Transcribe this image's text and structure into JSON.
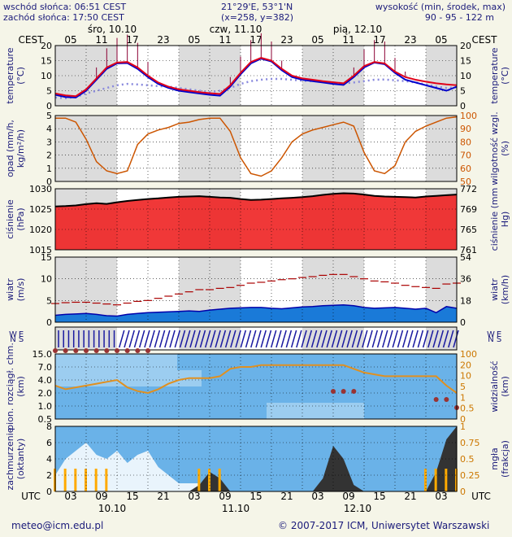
{
  "header": {
    "sunrise": "wschód słońca: 06:51 CEST",
    "sunset": "zachód słońca: 17:50 CEST",
    "coords": "21°29'E, 53°1'N",
    "grid": "(x=258, y=382)",
    "height_label": "wysokość (min, środek, max)",
    "height_values": "90 - 95 - 122 m"
  },
  "footer": {
    "email": "meteo@icm.edu.pl",
    "copyright": "© 2007-2017 ICM, Uniwersytet Warszawski"
  },
  "axes": {
    "cest_label": "CEST",
    "utc_label": "UTC",
    "cest_hours": [
      "05",
      "11",
      "17",
      "23",
      "05",
      "11",
      "17",
      "23",
      "05",
      "11",
      "17",
      "23",
      "05"
    ],
    "utc_hours": [
      "03",
      "09",
      "15",
      "21",
      "03",
      "09",
      "15",
      "21",
      "03",
      "09",
      "15",
      "21",
      "03"
    ],
    "top_days": [
      "śro, 10.10",
      "czw, 11.10",
      "pią, 12.10"
    ],
    "bottom_days": [
      "10.10",
      "11.10",
      "12.10"
    ]
  },
  "colors": {
    "temp_red": "#e0001a",
    "temp_blue": "#0000cc",
    "humidity": "#cc5500",
    "pressure_fill": "#ee2222",
    "wind_blue": "#1a7ad8",
    "cloud_bg": "#6ab2e8",
    "fog": "#333333",
    "rain_bar": "#ffaa00"
  },
  "chart_data": [
    {
      "type": "line",
      "name": "temperature",
      "ylabel": "temperature (°C)",
      "left_ticks": [
        "0",
        "5",
        "10",
        "15",
        "20"
      ],
      "right_ticks": [
        "0",
        "5",
        "10",
        "15",
        "20"
      ],
      "ylim": [
        0,
        22
      ],
      "series": [
        {
          "values": [
            4.5,
            3.8,
            3.5,
            6,
            10,
            14,
            15.8,
            16,
            14,
            11,
            8.5,
            7,
            6,
            5.5,
            5,
            4.6,
            4.3,
            7.5,
            12,
            16,
            17.5,
            16.5,
            13.5,
            11,
            10,
            9.5,
            9,
            8.6,
            8.2,
            11,
            14.5,
            16,
            15.5,
            12.5,
            10.5,
            9.5,
            8.8,
            8.2,
            7.8,
            7.5
          ]
        },
        {
          "values": [
            4,
            3.2,
            3,
            5.5,
            9.5,
            13.5,
            15.5,
            15.6,
            13.5,
            10.5,
            8,
            6.5,
            5.5,
            5,
            4.5,
            4,
            3.7,
            7,
            11.5,
            15.5,
            17.2,
            16.2,
            13,
            10.5,
            9.5,
            9,
            8.5,
            8,
            7.6,
            10.5,
            14,
            15.8,
            15.2,
            12,
            9.5,
            8.5,
            7.5,
            6.5,
            5.5,
            7
          ]
        },
        {
          "values": [
            3,
            2.8,
            3.2,
            4.5,
            5.5,
            6.5,
            7.5,
            8,
            7.8,
            7.5,
            7.2,
            7,
            6.5,
            6,
            5.5,
            5,
            5.5,
            6.5,
            8,
            9,
            9.5,
            9.8,
            9.8,
            9.5,
            9.2,
            9,
            8.8,
            8.5,
            8.2,
            8.5,
            9,
            9.5,
            9.6,
            9.3,
            9,
            8.5,
            7.8,
            7,
            6.5,
            6.8
          ]
        }
      ],
      "bars": [
        0,
        0,
        0,
        0,
        4,
        7,
        9,
        10,
        9,
        5,
        0,
        0,
        0,
        0,
        0,
        0,
        0,
        3,
        6,
        8,
        9,
        7,
        3,
        0,
        0,
        0,
        0,
        0,
        0,
        3,
        6,
        8,
        8,
        5,
        2,
        0,
        0,
        0,
        0,
        0
      ]
    },
    {
      "type": "line",
      "name": "precipitation-humidity",
      "ylabel": "opad (mm/h, kg/m²/h)",
      "ylabel_right": "wilgotność wzgl. (%)",
      "left_ticks": [
        "0",
        "1",
        "2",
        "3",
        "4",
        "5"
      ],
      "right_ticks": [
        "50",
        "60",
        "70",
        "80",
        "90",
        "100"
      ],
      "ylim": [
        0,
        5
      ],
      "ylim_right": [
        50,
        100
      ],
      "series": [
        {
          "values": [
            98,
            98,
            95,
            82,
            65,
            58,
            56,
            58,
            78,
            86,
            89,
            91,
            94,
            95,
            97,
            98,
            98,
            88,
            68,
            56,
            54,
            58,
            68,
            80,
            86,
            89,
            91,
            93,
            95,
            92,
            72,
            58,
            56,
            62,
            80,
            88,
            92,
            95,
            98,
            99
          ]
        }
      ]
    },
    {
      "type": "area",
      "name": "pressure",
      "ylabel": "ciśnienie (hPa)",
      "ylabel_right": "ciśnienie (mm Hg)",
      "left_ticks": [
        "1015",
        "1020",
        "1025",
        "1030"
      ],
      "right_ticks": [
        "761",
        "765",
        "769",
        "772"
      ],
      "ylim": [
        1013,
        1032
      ],
      "series": [
        {
          "values": [
            1026.5,
            1026.6,
            1026.8,
            1027.2,
            1027.5,
            1027.3,
            1027.8,
            1028.2,
            1028.5,
            1028.8,
            1029,
            1029.3,
            1029.5,
            1029.6,
            1029.7,
            1029.5,
            1029.3,
            1029.2,
            1028.8,
            1028.5,
            1028.6,
            1028.8,
            1029,
            1029.2,
            1029.4,
            1029.7,
            1030.1,
            1030.4,
            1030.6,
            1030.5,
            1030.2,
            1029.8,
            1029.6,
            1029.5,
            1029.4,
            1029.3,
            1029.6,
            1029.8,
            1030,
            1030.2
          ]
        }
      ]
    },
    {
      "type": "line",
      "name": "wind",
      "ylabel": "wiatr (m/s)",
      "ylabel_right": "wiatr (km/h)",
      "left_ticks": [
        "0",
        "5",
        "10",
        "15"
      ],
      "right_ticks": [
        "0",
        "18",
        "36",
        "54"
      ],
      "ylim": [
        0,
        15
      ],
      "series": [
        {
          "values": [
            1.6,
            1.8,
            1.9,
            2,
            1.8,
            1.5,
            1.4,
            1.8,
            2,
            2.2,
            2.3,
            2.4,
            2.5,
            2.6,
            2.5,
            2.8,
            3,
            3.2,
            3.3,
            3.4,
            3.4,
            3.2,
            3.1,
            3.3,
            3.5,
            3.6,
            3.8,
            3.9,
            4,
            3.8,
            3.4,
            3.2,
            3.3,
            3.4,
            3.2,
            3,
            3.2,
            2.2,
            3.6,
            3.2
          ]
        },
        {
          "values": [
            4.3,
            4.5,
            4.6,
            4.6,
            4.4,
            4.2,
            4,
            4.4,
            4.8,
            5,
            5.5,
            6,
            6.5,
            7,
            7.5,
            7.5,
            7.8,
            8,
            8.5,
            9,
            9.2,
            9.5,
            9.8,
            10,
            10.3,
            10.5,
            10.8,
            11,
            11,
            10.5,
            10,
            9.5,
            9.3,
            9,
            8.5,
            8.2,
            8,
            7.8,
            8.8,
            9
          ]
        }
      ]
    },
    {
      "type": "heatmap",
      "name": "cloud-visibility",
      "ylabel": "pion. rozciągł. chm. (km)",
      "ylabel_right": "widzialność (km)",
      "left_ticks": [
        "0.5",
        "1.0",
        "2.0",
        "4.0",
        "7.0",
        "15.0"
      ],
      "right_ticks": [
        "0",
        "0.5",
        "1",
        "5",
        "10",
        "20",
        "100"
      ],
      "series": [
        {
          "values": [
            1.8,
            1.6,
            1.7,
            1.8,
            1.9,
            2,
            2.1,
            1.7,
            1.5,
            1.4,
            1.6,
            1.9,
            2.1,
            2.2,
            2.2,
            2.2,
            2.3,
            2.7,
            2.8,
            2.8,
            2.9,
            2.9,
            2.9,
            2.9,
            2.9,
            2.9,
            2.9,
            2.9,
            2.9,
            2.7,
            2.5,
            2.4,
            2.3,
            2.3,
            2.3,
            2.3,
            2.3,
            2.3,
            1.8,
            1.4
          ]
        }
      ]
    },
    {
      "type": "area",
      "name": "cloud-cover-fog",
      "ylabel": "zachmurzenie (oktanty)",
      "ylabel_right": "mgła (frakcja)",
      "left_ticks": [
        "0",
        "2",
        "4",
        "6",
        "8"
      ],
      "right_ticks": [
        "0",
        "0.25",
        "0.5",
        "0.75",
        "1"
      ],
      "ylim": [
        0,
        8
      ],
      "ylim_right": [
        0,
        1
      ],
      "series": [
        {
          "values": [
            2,
            4,
            5,
            6,
            4.5,
            4,
            5,
            3.5,
            4.5,
            5,
            3,
            2,
            1,
            1,
            1,
            1,
            0.5,
            0,
            0,
            0,
            0,
            0,
            0,
            0,
            0,
            0,
            0,
            0,
            0,
            0,
            0,
            0,
            0,
            0,
            0,
            0,
            0,
            0,
            0,
            0
          ]
        },
        {
          "values": [
            0,
            0,
            0,
            0,
            0,
            0,
            0,
            0,
            0,
            0,
            0,
            0,
            0,
            0,
            0.1,
            0.3,
            0.2,
            0,
            0,
            0,
            0,
            0,
            0,
            0,
            0,
            0,
            0.2,
            0.7,
            0.5,
            0.1,
            0,
            0,
            0,
            0,
            0,
            0,
            0,
            0.3,
            0.8,
            1
          ]
        }
      ]
    }
  ]
}
